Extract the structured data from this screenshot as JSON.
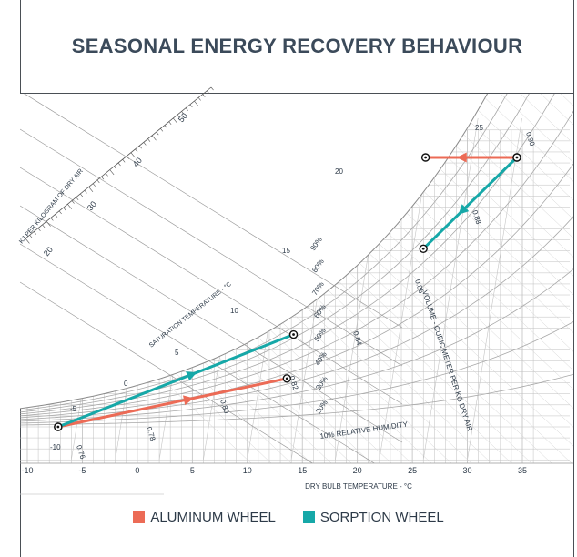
{
  "title": "SEASONAL ENERGY RECOVERY BEHAVIOUR",
  "colors": {
    "aluminum": "#ec6b56",
    "sorption": "#16a8a8",
    "grid": "#bfbfbf",
    "text": "#2d3a48"
  },
  "chart_data": {
    "type": "line",
    "title": "SEASONAL ENERGY RECOVERY BEHAVIOUR",
    "xlabel": "DRY BULB TEMPERATURE - °C",
    "xlim": [
      -10,
      35
    ],
    "xticks": [
      "-10",
      "-5",
      "0",
      "5",
      "10",
      "15",
      "20",
      "25",
      "30",
      "35"
    ],
    "enthalpy_label": "KJ PER KILOGRAM OF DRY AIR",
    "enthalpy_ticks": [
      "20",
      "30",
      "40",
      "50"
    ],
    "saturation_label": "SATURATION TEMPERATURE - °C",
    "saturation_ticks": [
      "0",
      "5",
      "10",
      "15",
      "20",
      "25",
      "-5",
      "-10"
    ],
    "rh_labels": [
      "90%",
      "80%",
      "70%",
      "60%",
      "50%",
      "40%",
      "30%",
      "20%",
      "10% RELATIVE HUMIDITY"
    ],
    "volume_label": "VOLUME - CUBIC METER PER KG DRY AIR",
    "volume_ticks": [
      "0.76",
      "0.78",
      "0.80",
      "0.82",
      "0.84",
      "0.86",
      "0.88",
      "0.90"
    ],
    "series": [
      {
        "name": "ALUMINUM WHEEL",
        "points": [
          [
            -7.2,
            0
          ],
          [
            13.6,
            4.4
          ]
        ],
        "arrow_direction": "forward"
      },
      {
        "name": "SORPTION WHEEL",
        "points": [
          [
            -7.2,
            0
          ],
          [
            14.2,
            8.4
          ]
        ],
        "arrow_direction": "forward"
      },
      {
        "name": "ALUMINUM WHEEL",
        "points": [
          [
            34.5,
            24.5
          ],
          [
            26.2,
            24.5
          ]
        ],
        "arrow_direction": "forward"
      },
      {
        "name": "SORPTION WHEEL",
        "points": [
          [
            34.5,
            24.5
          ],
          [
            26.0,
            16.2
          ]
        ],
        "arrow_direction": "forward"
      }
    ]
  },
  "legend": [
    {
      "label": "ALUMINUM WHEEL",
      "color": "#ec6b56"
    },
    {
      "label": "SORPTION WHEEL",
      "color": "#16a8a8"
    }
  ]
}
